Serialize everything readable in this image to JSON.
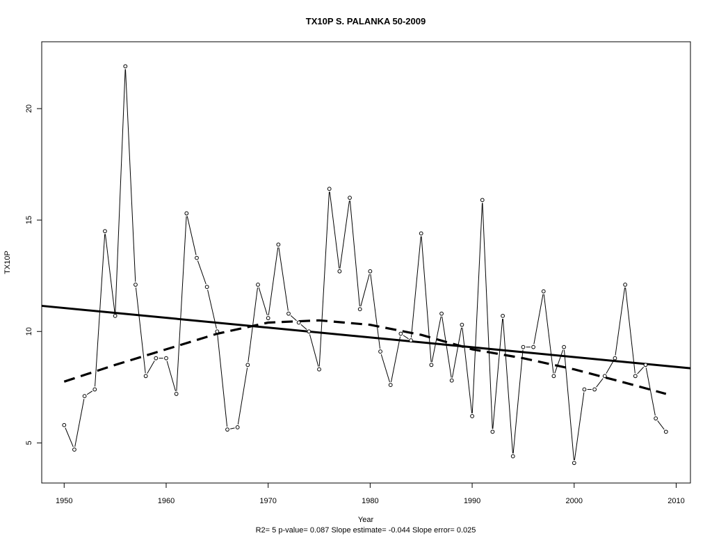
{
  "chart_data": {
    "type": "line",
    "title": "TX10P   S. PALANKA 50-2009",
    "xlabel": "Year",
    "ylabel": "TX10P",
    "subtitle": "R2= 5  p-value= 0.087  Slope estimate= -0.044  Slope error= 0.025",
    "xlim": [
      1947.8,
      2011.4
    ],
    "ylim": [
      3.2,
      23.0
    ],
    "x_ticks": [
      1950,
      1960,
      1970,
      1980,
      1990,
      2000,
      2010
    ],
    "y_ticks": [
      5,
      10,
      15,
      20
    ],
    "grid": false,
    "series": [
      {
        "style": "points-and-line",
        "x": [
          1950,
          1951,
          1952,
          1953,
          1954,
          1955,
          1956,
          1957,
          1958,
          1959,
          1960,
          1961,
          1962,
          1963,
          1964,
          1965,
          1966,
          1967,
          1968,
          1969,
          1970,
          1971,
          1972,
          1973,
          1974,
          1975,
          1976,
          1977,
          1978,
          1979,
          1980,
          1981,
          1982,
          1983,
          1984,
          1985,
          1986,
          1987,
          1988,
          1989,
          1990,
          1991,
          1992,
          1993,
          1994,
          1995,
          1996,
          1997,
          1998,
          1999,
          2000,
          2001,
          2002,
          2003,
          2004,
          2005,
          2006,
          2007,
          2008,
          2009
        ],
        "y": [
          5.8,
          4.7,
          7.1,
          7.4,
          14.5,
          10.7,
          21.9,
          12.1,
          8.0,
          8.8,
          8.8,
          7.2,
          15.3,
          13.3,
          12.0,
          10.0,
          5.6,
          5.7,
          8.5,
          12.1,
          10.6,
          13.9,
          10.8,
          10.4,
          10.0,
          8.3,
          16.4,
          12.7,
          16.0,
          11.0,
          12.7,
          9.1,
          7.6,
          9.9,
          9.6,
          14.4,
          8.5,
          10.8,
          7.8,
          10.3,
          6.2,
          15.9,
          5.5,
          10.7,
          4.4,
          9.3,
          9.3,
          11.8,
          8.0,
          9.3,
          4.1,
          7.4,
          7.4,
          8.0,
          8.8,
          12.1,
          8.0,
          8.5,
          6.1,
          5.5
        ]
      },
      {
        "style": "linear-trend",
        "x": [
          1947.8,
          2011.4
        ],
        "y": [
          11.15,
          8.35
        ]
      },
      {
        "style": "smoothed-trend",
        "x": [
          1950,
          1955,
          1960,
          1965,
          1970,
          1975,
          1980,
          1985,
          1990,
          1995,
          2000,
          2005,
          2009
        ],
        "y": [
          7.75,
          8.5,
          9.2,
          9.9,
          10.4,
          10.5,
          10.3,
          9.85,
          9.2,
          8.8,
          8.3,
          7.7,
          7.2
        ]
      }
    ]
  }
}
